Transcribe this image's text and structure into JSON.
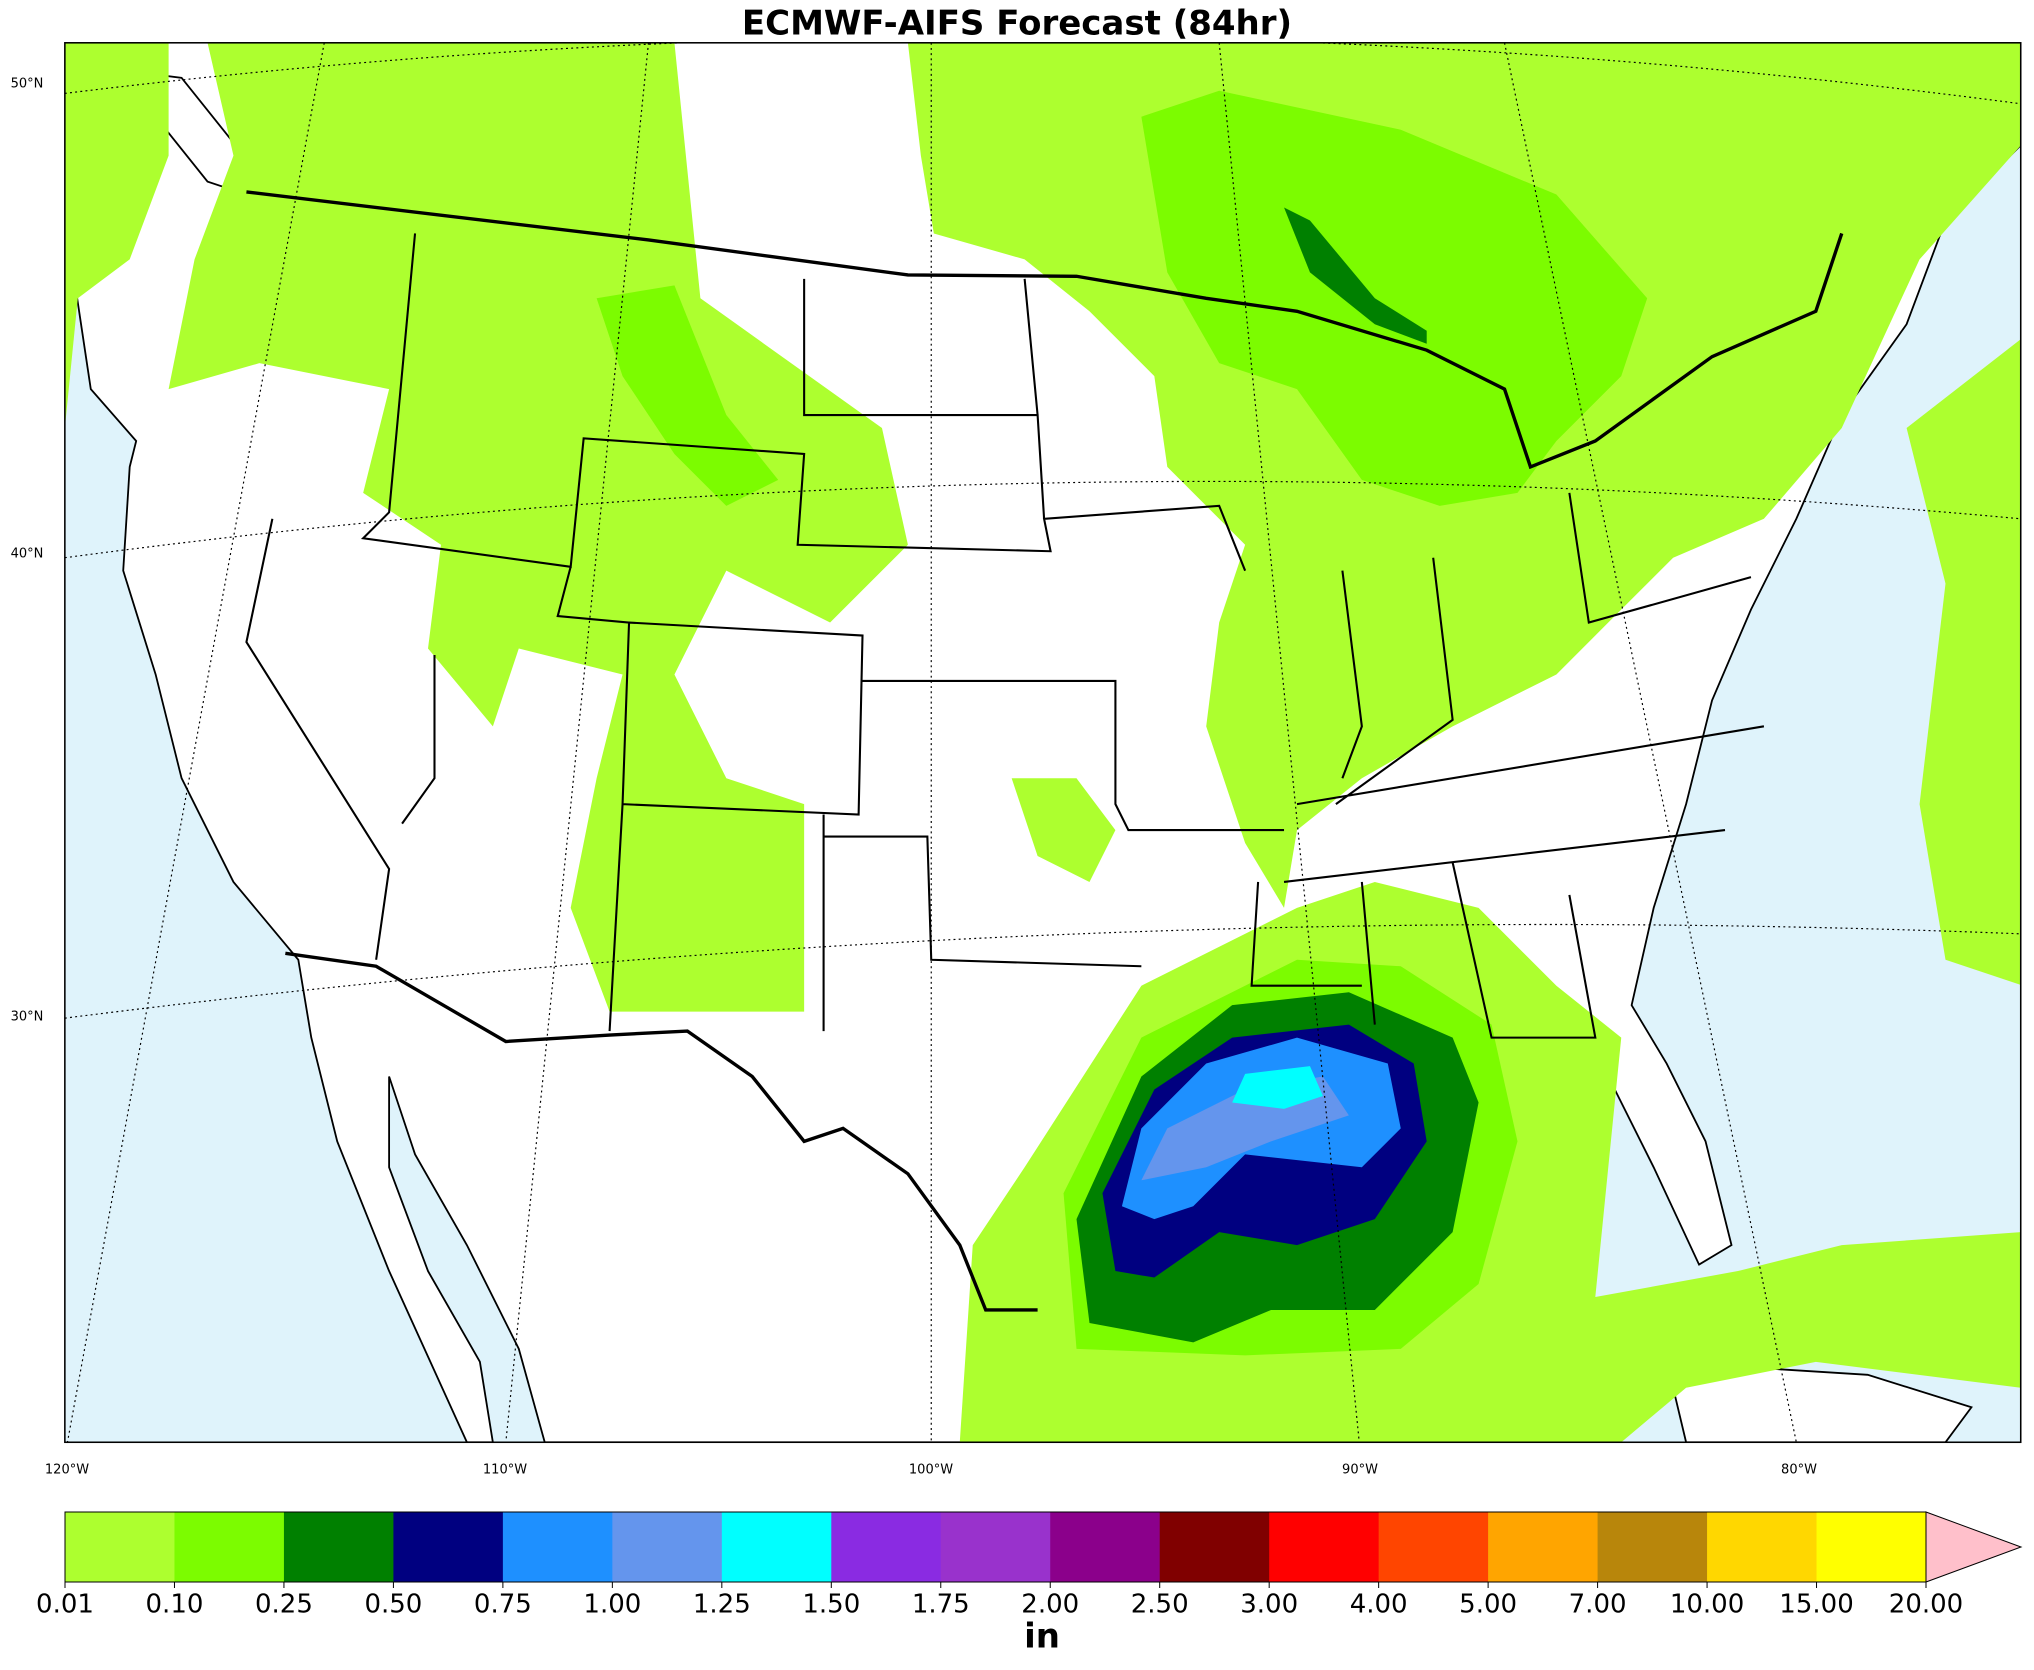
{
  "title": "ECMWF-AIFS Forecast (84hr)",
  "map": {
    "lat_labels": [
      "50°N",
      "40°N",
      "30°N"
    ],
    "lon_labels": [
      "120°W",
      "110°W",
      "100°W",
      "90°W",
      "80°W"
    ]
  },
  "colorbar": {
    "levels": [
      0.01,
      {
        "value": 0.1,
        "label": "0.10"
      },
      0.25,
      {
        "value": 0.5,
        "label": "0.50"
      },
      0.75,
      {
        "value": 1,
        "label": "1.00"
      },
      1.25,
      {
        "value": 1.5,
        "label": "1.50"
      },
      1.75,
      {
        "value": 2,
        "label": "2.00"
      },
      {
        "value": 2.5,
        "label": "2.50"
      },
      {
        "value": 3,
        "label": "3.00"
      },
      {
        "value": 4,
        "label": "4.00"
      },
      {
        "value": 5,
        "label": "5.00"
      },
      {
        "value": 7,
        "label": "7.00"
      },
      {
        "value": 10,
        "label": "10.00"
      },
      {
        "value": 15,
        "label": "15.00"
      },
      {
        "value": 20,
        "label": "20.00"
      }
    ],
    "colors": [
      "#adff2f",
      "#7cfc00",
      "#008000",
      "#000080",
      "#1e90ff",
      "#6495ed",
      "#00ffff",
      "#8a2be2",
      "#9932cc",
      "#8b008b",
      "#800000",
      "#ff0000",
      "#ff4500",
      "#ffa500",
      "#b8860b",
      "#ffd700",
      "#ffff00"
    ],
    "extend_color": "#ffc0cb",
    "unit": "in"
  }
}
